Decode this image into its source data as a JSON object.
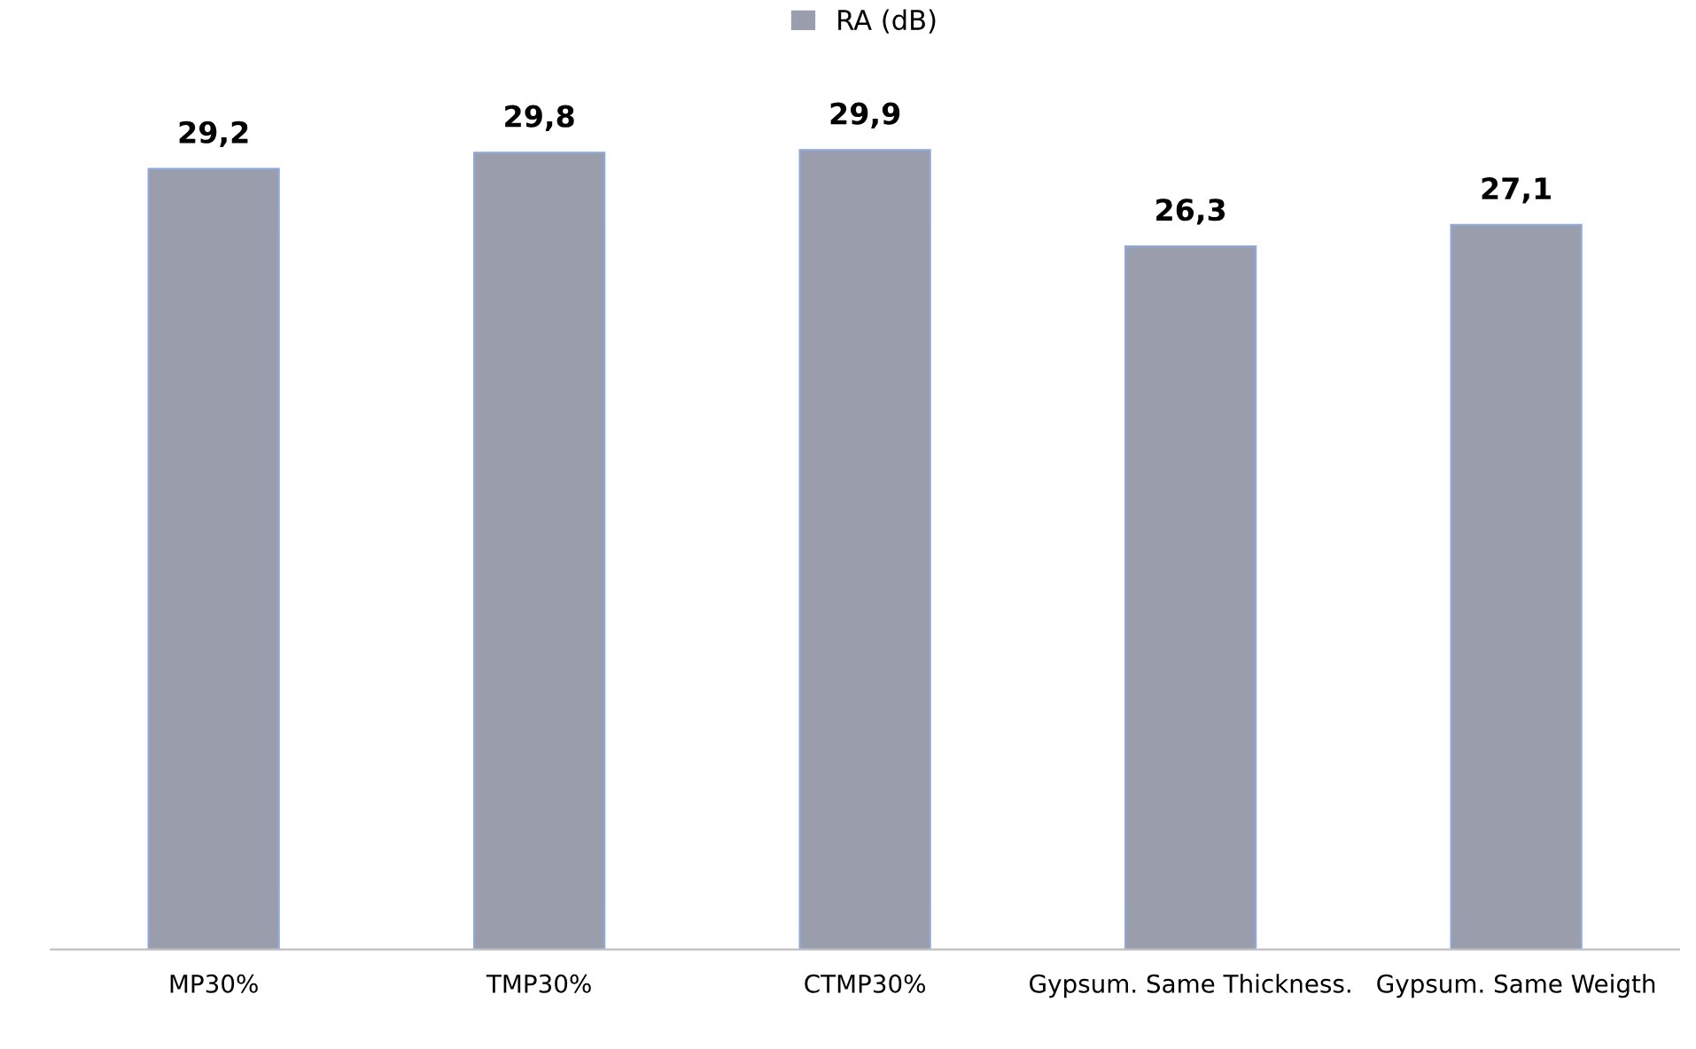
{
  "chart_data": {
    "type": "bar",
    "categories": [
      "MP30%",
      "TMP30%",
      "CTMP30%",
      "Gypsum. Same Thickness.",
      "Gypsum. Same Weigth"
    ],
    "series": [
      {
        "name": "RA (dB)",
        "color": "#9a9eac",
        "values": [
          29.2,
          29.8,
          29.9,
          26.3,
          27.1
        ],
        "value_labels": [
          "29,2",
          "29,8",
          "29,9",
          "26,3",
          "27,1"
        ]
      }
    ],
    "tick_labels": "x",
    "grid": false,
    "legend": "top"
  }
}
